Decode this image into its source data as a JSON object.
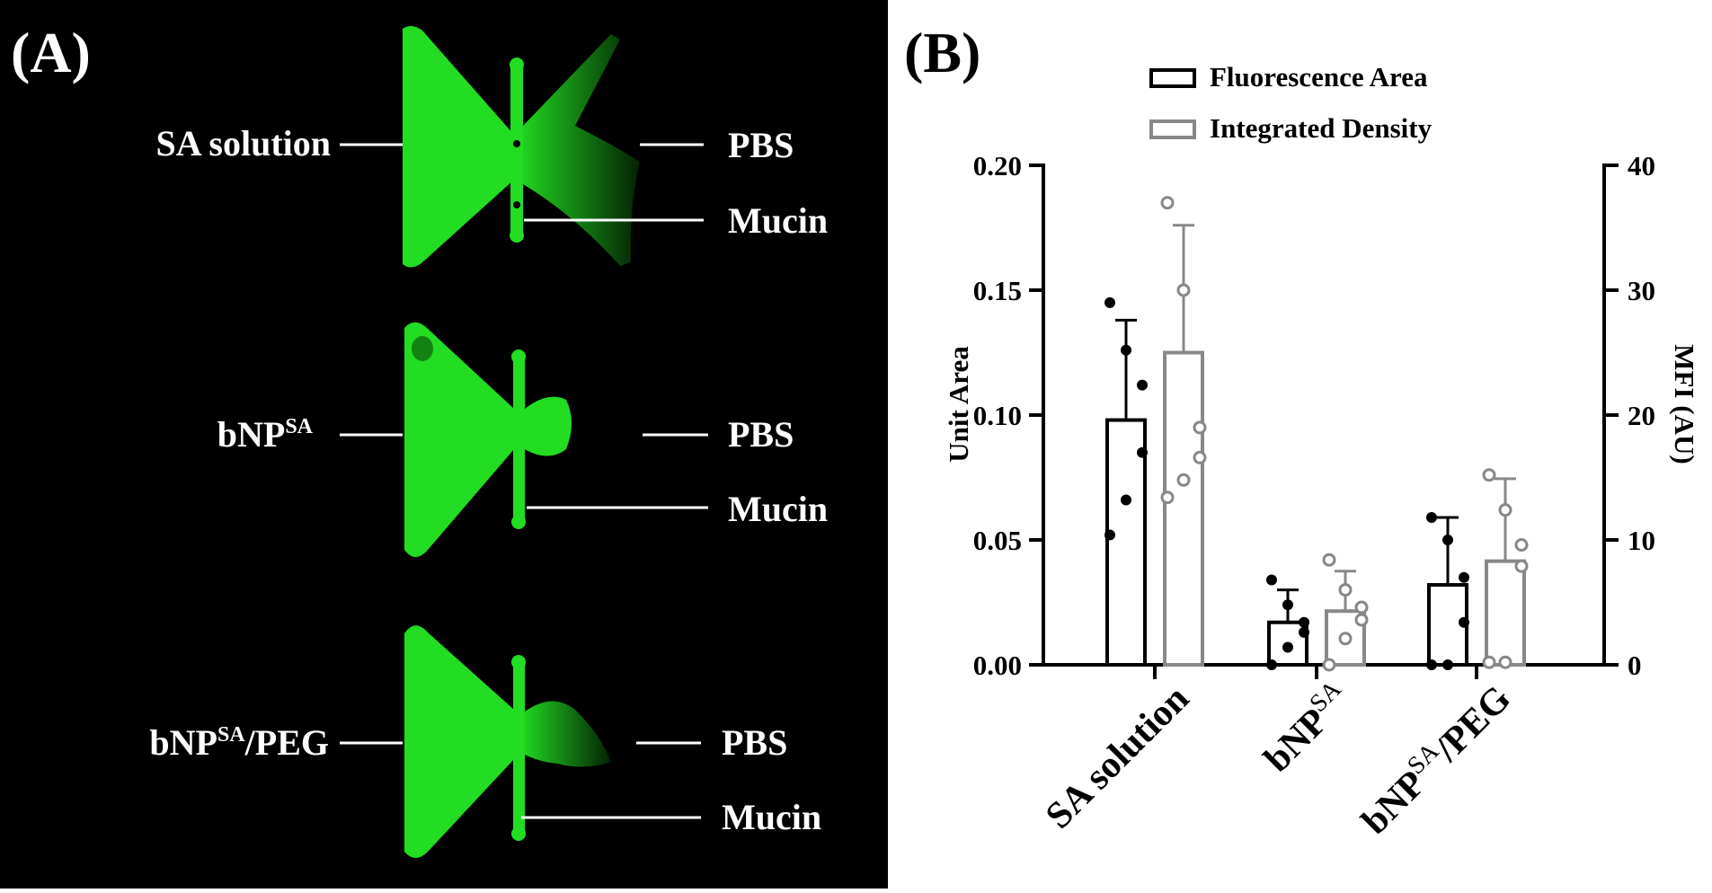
{
  "panel_a": {
    "label": "(A)",
    "rows": [
      {
        "left": "SA solution",
        "left_base": "SA solution",
        "left_sup": "",
        "pbs": "PBS",
        "mucin": "Mucin"
      },
      {
        "left": "bNPSA",
        "left_base": "bNP",
        "left_sup": "SA",
        "pbs": "PBS",
        "mucin": "Mucin"
      },
      {
        "left": "bNPSA/PEG",
        "left_base": "bNP",
        "left_sup": "SA",
        "left_suffix": "/PEG",
        "pbs": "PBS",
        "mucin": "Mucin"
      }
    ],
    "colors": {
      "background": "#000000",
      "fluorescence": "#22dd22",
      "text": "#ffffff"
    }
  },
  "panel_b": {
    "label": "(B)"
  },
  "chart_data": {
    "type": "bar",
    "categories": [
      "SA solution",
      "bNPSA",
      "bNPSA/PEG"
    ],
    "category_labels": [
      {
        "base": "SA solution",
        "sup": "",
        "suffix": ""
      },
      {
        "base": "bNP",
        "sup": "SA",
        "suffix": ""
      },
      {
        "base": "bNP",
        "sup": "SA",
        "suffix": "/PEG"
      }
    ],
    "ylabel": "Unit Area",
    "y2label": "MFI (AU)",
    "ylim": [
      0,
      0.2
    ],
    "y2lim": [
      0,
      40
    ],
    "yticks": [
      "0.00",
      "0.05",
      "0.10",
      "0.15",
      "0.20"
    ],
    "y2ticks": [
      "0",
      "10",
      "20",
      "30",
      "40"
    ],
    "legend_position": "top",
    "series": [
      {
        "name": "Fluorescence Area",
        "axis": "left",
        "color": "#000000",
        "values": [
          0.098,
          0.017,
          0.032
        ],
        "error": [
          0.04,
          0.013,
          0.027
        ],
        "points": [
          [
            0.145,
            0.126,
            0.112,
            0.085,
            0.066,
            0.052
          ],
          [
            0.034,
            0.024,
            0.017,
            0.013,
            0.007,
            0.0
          ],
          [
            0.059,
            0.05,
            0.035,
            0.017,
            0.0,
            0.0
          ]
        ]
      },
      {
        "name": "Integrated Density",
        "axis": "right",
        "color": "#888888",
        "values": [
          25.0,
          4.3,
          8.3
        ],
        "error": [
          10.2,
          3.2,
          6.6
        ],
        "points": [
          [
            37.0,
            30.0,
            19.0,
            16.6,
            14.8,
            13.4
          ],
          [
            8.4,
            6.0,
            4.6,
            3.6,
            2.1,
            0.0
          ],
          [
            15.2,
            12.4,
            9.6,
            7.9,
            0.2,
            0.2
          ]
        ]
      }
    ]
  }
}
